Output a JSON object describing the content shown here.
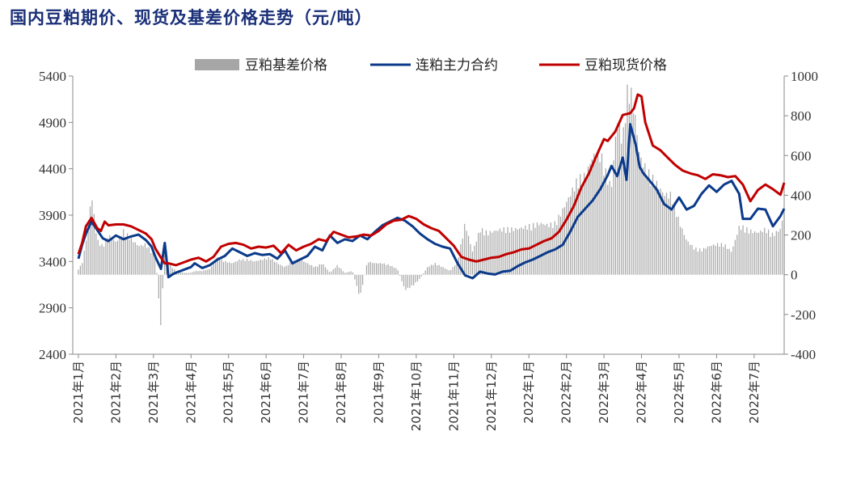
{
  "title": "国内豆粕期价、现货及基差价格走势（元/吨）",
  "colors": {
    "title": "#1a2f78",
    "basis_bar": "#a6a6a6",
    "futures_line": "#0b3a8a",
    "spot_line": "#c00000",
    "axis": "#888888"
  },
  "chart_data": {
    "type": "line",
    "title": "国内豆粕期价、现货及基差价格走势（元/吨）",
    "xlabel": "",
    "ylabel": "",
    "left_axis": {
      "ylim": [
        2400,
        5400
      ],
      "ticks": [
        "5400",
        "4900",
        "4400",
        "3900",
        "3400",
        "2900",
        "2400"
      ]
    },
    "right_axis": {
      "ylim": [
        -400,
        1000
      ],
      "ticks": [
        "1000",
        "800",
        "600",
        "400",
        "200",
        "0",
        "-200",
        "-400"
      ]
    },
    "x_tick_labels": [
      "2021年1月",
      "2021年2月",
      "2021年3月",
      "2021年4月",
      "2021年5月",
      "2021年6月",
      "2021年7月",
      "2021年8月",
      "2021年9月",
      "2021年10月",
      "2021年11月",
      "2021年12月",
      "2022年1月",
      "2022年2月",
      "2022年3月",
      "2022年4月",
      "2022年5月",
      "2022年6月",
      "2022年7月"
    ],
    "x_months": [
      0,
      1,
      2,
      3,
      4,
      5,
      6,
      7,
      8,
      9,
      10,
      11,
      12,
      13,
      14,
      15,
      16,
      17,
      18
    ],
    "x_range": [
      -0.15,
      18.8
    ],
    "legend": [
      {
        "name": "豆粕基差价格",
        "kind": "bar"
      },
      {
        "name": "连粕主力合约",
        "kind": "line"
      },
      {
        "name": "豆粕现货价格",
        "kind": "line"
      }
    ],
    "legend_position": "top-center",
    "series": [
      {
        "name": "连粕主力合约",
        "axis": "left",
        "x": [
          0,
          0.1,
          0.2,
          0.35,
          0.5,
          0.65,
          0.8,
          1.0,
          1.2,
          1.4,
          1.6,
          1.8,
          1.95,
          2.05,
          2.2,
          2.3,
          2.4,
          2.5,
          2.6,
          2.8,
          3.0,
          3.1,
          3.3,
          3.5,
          3.7,
          3.9,
          4.1,
          4.3,
          4.5,
          4.7,
          4.9,
          5.1,
          5.3,
          5.5,
          5.7,
          5.9,
          6.1,
          6.3,
          6.5,
          6.7,
          6.9,
          7.1,
          7.3,
          7.5,
          7.7,
          7.9,
          8.1,
          8.3,
          8.5,
          8.7,
          8.9,
          9.1,
          9.3,
          9.5,
          9.7,
          9.9,
          10.1,
          10.3,
          10.5,
          10.7,
          10.9,
          11.1,
          11.3,
          11.5,
          11.7,
          11.9,
          12.1,
          12.3,
          12.5,
          12.7,
          12.9,
          13.1,
          13.3,
          13.5,
          13.7,
          13.9,
          14.1,
          14.2,
          14.35,
          14.5,
          14.6,
          14.7,
          14.85,
          14.95,
          15.05,
          15.2,
          15.4,
          15.6,
          15.8,
          16.0,
          16.2,
          16.4,
          16.6,
          16.8,
          17.0,
          17.2,
          17.4,
          17.6,
          17.7,
          17.9,
          18.1,
          18.3,
          18.5,
          18.7,
          18.8
        ],
        "y": [
          3430,
          3580,
          3700,
          3830,
          3740,
          3650,
          3620,
          3680,
          3640,
          3670,
          3690,
          3630,
          3560,
          3450,
          3320,
          3600,
          3230,
          3260,
          3280,
          3310,
          3340,
          3380,
          3330,
          3360,
          3420,
          3460,
          3540,
          3500,
          3460,
          3490,
          3470,
          3480,
          3430,
          3520,
          3380,
          3420,
          3460,
          3560,
          3520,
          3680,
          3600,
          3640,
          3620,
          3680,
          3640,
          3720,
          3790,
          3830,
          3870,
          3840,
          3780,
          3700,
          3640,
          3590,
          3560,
          3540,
          3380,
          3250,
          3220,
          3290,
          3270,
          3260,
          3290,
          3300,
          3350,
          3390,
          3420,
          3460,
          3500,
          3530,
          3580,
          3720,
          3880,
          3970,
          4060,
          4180,
          4330,
          4430,
          4320,
          4520,
          4280,
          4880,
          4650,
          4420,
          4350,
          4280,
          4180,
          4020,
          3960,
          4090,
          3960,
          4000,
          4130,
          4220,
          4150,
          4230,
          4270,
          4130,
          3860,
          3860,
          3970,
          3960,
          3780,
          3890,
          3970
        ]
      },
      {
        "name": "豆粕现货价格",
        "axis": "left",
        "x": [
          0,
          0.1,
          0.2,
          0.35,
          0.5,
          0.6,
          0.7,
          0.8,
          1.0,
          1.2,
          1.4,
          1.6,
          1.8,
          1.95,
          2.05,
          2.2,
          2.3,
          2.4,
          2.6,
          2.8,
          3.0,
          3.2,
          3.4,
          3.6,
          3.8,
          4.0,
          4.2,
          4.4,
          4.6,
          4.8,
          5.0,
          5.2,
          5.4,
          5.6,
          5.8,
          6.0,
          6.2,
          6.4,
          6.6,
          6.8,
          7.0,
          7.2,
          7.4,
          7.6,
          7.8,
          8.0,
          8.2,
          8.4,
          8.6,
          8.8,
          9.0,
          9.2,
          9.4,
          9.6,
          9.8,
          10.0,
          10.2,
          10.4,
          10.6,
          10.8,
          11.0,
          11.2,
          11.4,
          11.6,
          11.8,
          12.0,
          12.2,
          12.4,
          12.6,
          12.8,
          13.0,
          13.2,
          13.4,
          13.6,
          13.8,
          14.0,
          14.1,
          14.3,
          14.5,
          14.7,
          14.8,
          14.9,
          15.0,
          15.1,
          15.3,
          15.5,
          15.7,
          15.9,
          16.1,
          16.3,
          16.5,
          16.7,
          16.9,
          17.1,
          17.3,
          17.5,
          17.7,
          17.9,
          18.1,
          18.3,
          18.5,
          18.7,
          18.8
        ],
        "y": [
          3480,
          3600,
          3780,
          3870,
          3760,
          3730,
          3830,
          3790,
          3800,
          3800,
          3780,
          3740,
          3700,
          3640,
          3540,
          3440,
          3380,
          3380,
          3360,
          3390,
          3420,
          3440,
          3400,
          3450,
          3560,
          3590,
          3600,
          3580,
          3540,
          3560,
          3550,
          3570,
          3490,
          3580,
          3520,
          3560,
          3590,
          3640,
          3620,
          3720,
          3690,
          3660,
          3670,
          3690,
          3680,
          3730,
          3800,
          3840,
          3850,
          3890,
          3860,
          3800,
          3760,
          3730,
          3650,
          3570,
          3450,
          3420,
          3400,
          3420,
          3440,
          3450,
          3480,
          3500,
          3530,
          3540,
          3580,
          3620,
          3650,
          3720,
          3850,
          4000,
          4200,
          4350,
          4540,
          4720,
          4700,
          4800,
          4980,
          5000,
          5050,
          5200,
          5180,
          4900,
          4650,
          4600,
          4520,
          4440,
          4380,
          4350,
          4330,
          4290,
          4340,
          4330,
          4310,
          4320,
          4230,
          4050,
          4170,
          4230,
          4180,
          4120,
          4250
        ]
      },
      {
        "name": "豆粕基差价格",
        "axis": "right",
        "x": [
          0,
          0.1,
          0.2,
          0.35,
          0.5,
          0.65,
          0.8,
          1.0,
          1.2,
          1.4,
          1.6,
          1.8,
          1.95,
          2.05,
          2.2,
          2.3,
          2.4,
          2.5,
          2.6,
          2.8,
          3.0,
          3.1,
          3.3,
          3.5,
          3.7,
          3.9,
          4.1,
          4.3,
          4.5,
          4.7,
          4.9,
          5.1,
          5.3,
          5.5,
          5.7,
          5.9,
          6.1,
          6.3,
          6.5,
          6.7,
          6.9,
          7.1,
          7.3,
          7.5,
          7.7,
          7.9,
          8.1,
          8.3,
          8.5,
          8.7,
          8.9,
          9.1,
          9.3,
          9.5,
          9.7,
          9.9,
          10.1,
          10.3,
          10.5,
          10.7,
          10.9,
          11.1,
          11.3,
          11.5,
          11.7,
          11.9,
          12.1,
          12.3,
          12.5,
          12.7,
          12.9,
          13.1,
          13.3,
          13.5,
          13.7,
          13.9,
          14.1,
          14.2,
          14.35,
          14.5,
          14.6,
          14.7,
          14.85,
          14.95,
          15.05,
          15.2,
          15.4,
          15.6,
          15.8,
          16.0,
          16.2,
          16.4,
          16.6,
          16.8,
          17.0,
          17.2,
          17.4,
          17.6,
          17.7,
          17.9,
          18.1,
          18.3,
          18.5,
          18.7,
          18.8
        ],
        "y": [
          30,
          60,
          170,
          420,
          180,
          150,
          210,
          170,
          230,
          190,
          150,
          160,
          120,
          110,
          -280,
          180,
          60,
          40,
          20,
          10,
          10,
          20,
          20,
          30,
          90,
          70,
          60,
          80,
          80,
          70,
          80,
          90,
          60,
          40,
          70,
          80,
          60,
          40,
          60,
          10,
          50,
          10,
          20,
          -120,
          70,
          60,
          60,
          50,
          30,
          -80,
          -60,
          -20,
          40,
          60,
          40,
          20,
          70,
          270,
          120,
          240,
          220,
          230,
          240,
          240,
          240,
          250,
          260,
          270,
          260,
          270,
          340,
          420,
          500,
          520,
          620,
          640,
          500,
          460,
          820,
          700,
          950,
          980,
          800,
          620,
          580,
          530,
          480,
          420,
          420,
          280,
          180,
          140,
          130,
          150,
          160,
          160,
          120,
          250,
          250,
          230,
          220,
          240,
          210,
          240,
          330
        ]
      }
    ]
  }
}
